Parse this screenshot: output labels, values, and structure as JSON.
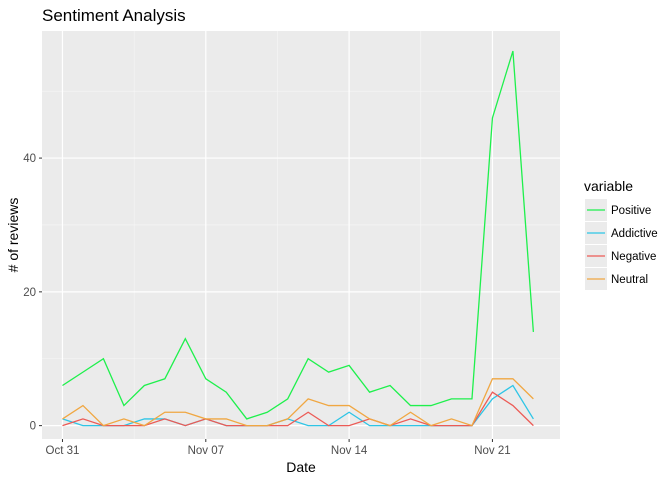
{
  "chart_data": {
    "type": "line",
    "title": "Sentiment Analysis",
    "xlabel": "Date",
    "ylabel": "# of reviews",
    "x_ticks": [
      "Oct 31",
      "Nov 07",
      "Nov 14",
      "Nov 21"
    ],
    "x_tick_days": [
      0,
      7,
      14,
      21
    ],
    "y_ticks": [
      0,
      20,
      40
    ],
    "ylim": [
      -2,
      59
    ],
    "xlim": [
      -1,
      24.3
    ],
    "x": [
      0,
      1,
      2,
      3,
      4,
      5,
      6,
      7,
      8,
      9,
      10,
      11,
      12,
      13,
      14,
      15,
      16,
      17,
      18,
      19,
      20,
      21,
      22,
      23
    ],
    "legend": {
      "title": "variable",
      "position": "right"
    },
    "series": [
      {
        "name": "Positive",
        "color": "#1ef04c",
        "values": [
          6,
          8,
          10,
          3,
          6,
          7,
          13,
          7,
          5,
          1,
          2,
          4,
          10,
          8,
          9,
          5,
          6,
          3,
          3,
          4,
          4,
          46,
          56,
          14
        ]
      },
      {
        "name": "Addictive",
        "color": "#2ec5e6",
        "values": [
          1,
          0,
          0,
          0,
          1,
          1,
          0,
          1,
          0,
          0,
          0,
          1,
          0,
          0,
          2,
          0,
          0,
          0,
          0,
          0,
          0,
          4,
          6,
          1
        ]
      },
      {
        "name": "Negative",
        "color": "#ec5b56",
        "values": [
          0,
          1,
          0,
          0,
          0,
          1,
          0,
          1,
          0,
          0,
          0,
          0,
          2,
          0,
          0,
          1,
          0,
          1,
          0,
          0,
          0,
          5,
          3,
          0
        ]
      },
      {
        "name": "Neutral",
        "color": "#f0a742",
        "values": [
          1,
          3,
          0,
          1,
          0,
          2,
          2,
          1,
          1,
          0,
          0,
          1,
          4,
          3,
          3,
          1,
          0,
          2,
          0,
          1,
          0,
          7,
          7,
          4
        ]
      }
    ]
  }
}
